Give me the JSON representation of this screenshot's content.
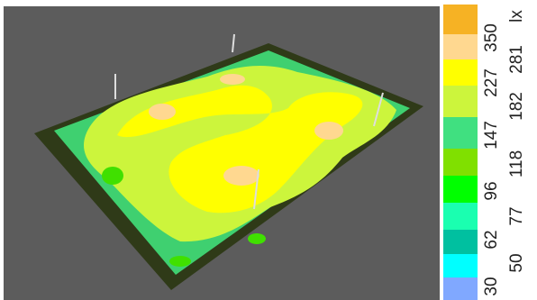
{
  "legend": {
    "unit": "lx",
    "labels": [
      30,
      50,
      62,
      77,
      96,
      118,
      147,
      182,
      227,
      281,
      350
    ]
  }
}
